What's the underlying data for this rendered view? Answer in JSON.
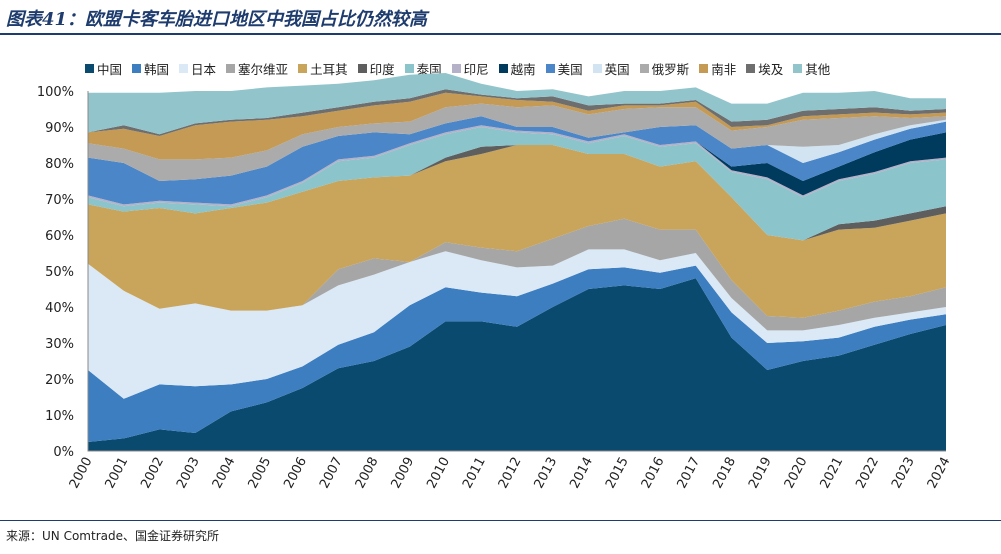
{
  "title": "图表41：欧盟卡客车胎进口地区中我国占比仍然较高",
  "source": "来源：UN Comtrade、国金证券研究所",
  "chart_data": {
    "type": "area",
    "stacked": true,
    "percent": true,
    "ylim": [
      0,
      100
    ],
    "yticks": [
      "0%",
      "10%",
      "20%",
      "30%",
      "40%",
      "50%",
      "60%",
      "70%",
      "80%",
      "90%",
      "100%"
    ],
    "categories": [
      "2000",
      "2001",
      "2002",
      "2003",
      "2004",
      "2005",
      "2006",
      "2007",
      "2008",
      "2009",
      "2010",
      "2011",
      "2012",
      "2013",
      "2014",
      "2015",
      "2016",
      "2017",
      "2018",
      "2019",
      "2020",
      "2021",
      "2022",
      "2023",
      "2024"
    ],
    "legend_position": "top",
    "series": [
      {
        "name": "中国",
        "color": "#0b4a6f",
        "values": [
          2.5,
          3.5,
          6,
          5,
          11,
          13.5,
          17.5,
          23,
          25,
          29,
          36,
          36,
          34.5,
          40,
          45,
          46,
          45,
          48,
          31.5,
          22.5,
          25,
          26.5,
          29.5,
          32.5,
          35
        ]
      },
      {
        "name": "韩国",
        "color": "#3d7ec1",
        "values": [
          20,
          11,
          12.5,
          13,
          7.5,
          6.5,
          6,
          6.5,
          8,
          11.5,
          9.5,
          8,
          8.5,
          6.5,
          5.5,
          5,
          4.5,
          3.5,
          7,
          7.5,
          5.5,
          5,
          5,
          4,
          3
        ]
      },
      {
        "name": "日本",
        "color": "#dbe8f5",
        "values": [
          29.5,
          30,
          21,
          23,
          20.5,
          19,
          17,
          16.5,
          16,
          12,
          10,
          9,
          8,
          5,
          5.5,
          5,
          3.5,
          3.5,
          4,
          3.5,
          3,
          3.5,
          2.5,
          2,
          2
        ]
      },
      {
        "name": "塞尔维亚",
        "color": "#a6a6a6",
        "values": [
          0,
          0,
          0,
          0,
          0,
          0,
          0,
          4.5,
          4.5,
          0,
          2.5,
          3.5,
          4.5,
          7.5,
          6.5,
          8.5,
          8.5,
          6.5,
          5,
          4,
          3.5,
          4,
          4.5,
          4.5,
          5.5
        ]
      },
      {
        "name": "土耳其",
        "color": "#c9a45b",
        "values": [
          16.5,
          22,
          28,
          25,
          28.5,
          30,
          31.5,
          24.5,
          22.5,
          24,
          22.5,
          26,
          29.5,
          26,
          20,
          18,
          17.5,
          19,
          23,
          22.5,
          21.5,
          22.5,
          20.5,
          21,
          20.5
        ]
      },
      {
        "name": "印度",
        "color": "#5e5e5e",
        "values": [
          0,
          0,
          0,
          0,
          0,
          0,
          0,
          0,
          0,
          0,
          1,
          2,
          0,
          0,
          0,
          0,
          0,
          0,
          0,
          0,
          0,
          1.5,
          2,
          2,
          2
        ]
      },
      {
        "name": "泰国",
        "color": "#8cc4cc",
        "values": [
          2,
          1.5,
          1.5,
          2.5,
          0.5,
          1.5,
          2.5,
          5.5,
          5.5,
          8.5,
          6.5,
          5.5,
          3.5,
          3,
          3,
          5,
          5.5,
          5,
          7,
          15.5,
          12,
          12,
          13,
          14,
          13
        ]
      },
      {
        "name": "印尼",
        "color": "#b4b1c8",
        "values": [
          0.5,
          0.5,
          0.5,
          0.5,
          0.5,
          0.5,
          0.5,
          0.5,
          0.5,
          0.5,
          0.5,
          0.5,
          0.5,
          0.5,
          0.5,
          0.5,
          0.5,
          0.5,
          0.5,
          0.5,
          0.5,
          0.5,
          0.5,
          0.5,
          0.5
        ]
      },
      {
        "name": "越南",
        "color": "#003a5d",
        "values": [
          0,
          0,
          0,
          0,
          0,
          0,
          0,
          0,
          0,
          0,
          0,
          0,
          0,
          0,
          0,
          0,
          0,
          0,
          1,
          4,
          4,
          3.5,
          5.5,
          6,
          7
        ]
      },
      {
        "name": "美国",
        "color": "#4a86c8",
        "values": [
          10.5,
          11.5,
          5.5,
          6.5,
          8,
          8,
          9.5,
          6.5,
          6.5,
          2.5,
          2.5,
          2.5,
          1,
          1.5,
          1,
          0.5,
          5,
          4.5,
          5,
          5,
          5,
          4,
          3.5,
          3,
          3
        ]
      },
      {
        "name": "英国",
        "color": "#d2e3f1",
        "values": [
          0,
          0,
          0,
          0,
          0,
          0,
          0,
          0,
          0,
          0,
          0,
          0,
          0,
          0,
          0,
          0,
          0,
          0,
          0,
          0,
          4.5,
          2,
          1.5,
          1,
          0.5
        ]
      },
      {
        "name": "俄罗斯",
        "color": "#ababab",
        "values": [
          4,
          4,
          6,
          5.5,
          5,
          4.5,
          3.5,
          2.5,
          2.5,
          3.5,
          4.5,
          3.5,
          5.5,
          6,
          6.5,
          6.5,
          5.5,
          5,
          5,
          5,
          7.5,
          7.5,
          5,
          2,
          1
        ]
      },
      {
        "name": "南非",
        "color": "#c49a54",
        "values": [
          3,
          5.5,
          6.5,
          9.5,
          10,
          8.5,
          5,
          4.5,
          5,
          5.5,
          4,
          2,
          2,
          1,
          1,
          1,
          0.5,
          1.5,
          1,
          0.5,
          1,
          1,
          1,
          1,
          1
        ]
      },
      {
        "name": "埃及",
        "color": "#6e6e6e",
        "values": [
          0,
          1,
          0.5,
          0.5,
          0.5,
          0.5,
          1,
          1,
          1,
          1,
          1,
          0.5,
          0.5,
          1.5,
          1.5,
          0.5,
          0.5,
          0.5,
          1.5,
          1.5,
          1.5,
          1.5,
          1.5,
          1,
          1
        ]
      },
      {
        "name": "其他",
        "color": "#92c5cb",
        "values": [
          11,
          9,
          11.5,
          9,
          8,
          8.5,
          7.5,
          6.5,
          6,
          6.5,
          4.5,
          3,
          2,
          2,
          2.5,
          3.5,
          3.5,
          3.5,
          5,
          4.5,
          5,
          4.5,
          4.5,
          3.5,
          3
        ]
      }
    ]
  }
}
